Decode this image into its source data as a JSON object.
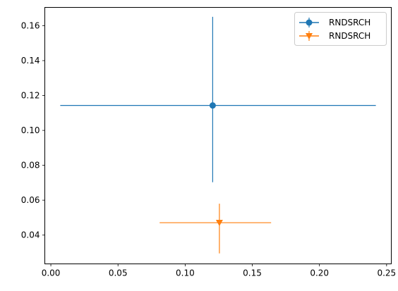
{
  "chart_data": {
    "type": "scatter",
    "title": "",
    "xlabel": "",
    "ylabel": "",
    "xlim": [
      -0.0045,
      0.2535
    ],
    "ylim": [
      0.0235,
      0.1705
    ],
    "x_ticks": [
      0.0,
      0.05,
      0.1,
      0.15,
      0.2,
      0.25
    ],
    "x_tick_labels": [
      "0.00",
      "0.05",
      "0.10",
      "0.15",
      "0.20",
      "0.25"
    ],
    "y_ticks": [
      0.04,
      0.06,
      0.08,
      0.1,
      0.12,
      0.14,
      0.16
    ],
    "y_tick_labels": [
      "0.04",
      "0.06",
      "0.08",
      "0.10",
      "0.12",
      "0.14",
      "0.16"
    ],
    "grid": false,
    "legend_position": "top-right",
    "series": [
      {
        "name": "RNDSRCH",
        "marker": "circle",
        "color": "#1f77b4",
        "x": 0.1205,
        "y": 0.1143,
        "x_err": [
          0.1135,
          0.1215
        ],
        "y_err": [
          0.044,
          0.0508
        ]
      },
      {
        "name": "RNDSRCH",
        "marker": "triangle-down",
        "color": "#ff7f0e",
        "x": 0.1255,
        "y": 0.0471,
        "x_err": [
          0.0445,
          0.0385
        ],
        "y_err": [
          0.0176,
          0.0109
        ]
      }
    ]
  }
}
